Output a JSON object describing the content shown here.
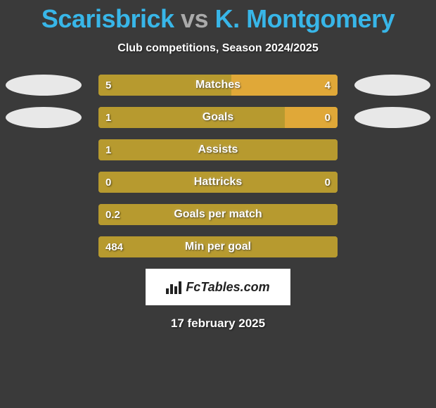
{
  "title": {
    "player1": "Scarisbrick",
    "vs": "vs",
    "player2": "K. Montgomery"
  },
  "subtitle": "Club competitions, Season 2024/2025",
  "chart": {
    "colors": {
      "left_bar": "#b79a2f",
      "right_bar": "#e0a838",
      "ellipse": "#e8e8e8",
      "background": "#3a3a3a",
      "p1_text": "#38b6e8",
      "p2_text": "#38b6e8",
      "vs_text": "#aaaaaa"
    },
    "rows": [
      {
        "label": "Matches",
        "left_val": "5",
        "right_val": "4",
        "left_pct": 55.6,
        "right_pct": 44.4,
        "show_left_ellipse": true,
        "show_right_ellipse": true
      },
      {
        "label": "Goals",
        "left_val": "1",
        "right_val": "0",
        "left_pct": 78.0,
        "right_pct": 22.0,
        "show_left_ellipse": true,
        "show_right_ellipse": true
      },
      {
        "label": "Assists",
        "left_val": "1",
        "right_val": "",
        "left_pct": 100,
        "right_pct": 0,
        "show_left_ellipse": false,
        "show_right_ellipse": false
      },
      {
        "label": "Hattricks",
        "left_val": "0",
        "right_val": "0",
        "left_pct": 100,
        "right_pct": 0,
        "show_left_ellipse": false,
        "show_right_ellipse": false
      },
      {
        "label": "Goals per match",
        "left_val": "0.2",
        "right_val": "",
        "left_pct": 100,
        "right_pct": 0,
        "show_left_ellipse": false,
        "show_right_ellipse": false
      },
      {
        "label": "Min per goal",
        "left_val": "484",
        "right_val": "",
        "left_pct": 100,
        "right_pct": 0,
        "show_left_ellipse": false,
        "show_right_ellipse": false
      }
    ]
  },
  "logo_text": "FcTables.com",
  "date": "17 february 2025"
}
